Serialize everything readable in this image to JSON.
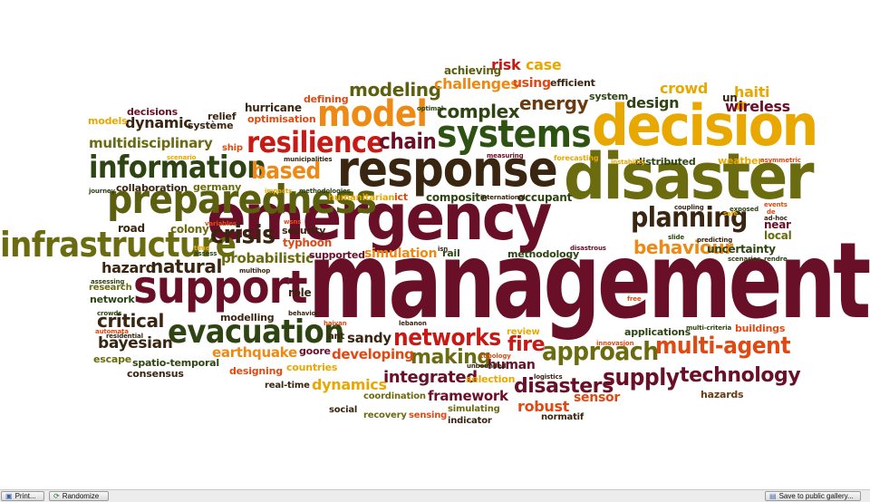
{
  "colors": {
    "dark_maroon": "#5a0f24",
    "maroon": "#7a1430",
    "olive": "#6b6b10",
    "olive_dark": "#5b5f0e",
    "dark_green": "#2e4412",
    "orange": "#ee8a14",
    "orange_red": "#e04a12",
    "red": "#c81a14",
    "gold": "#e2a800",
    "brown": "#6a3a10"
  },
  "words": [
    {
      "text": "management",
      "color": "#6a0f28"
    },
    {
      "text": "emergency",
      "color": "#6a0f28"
    },
    {
      "text": "disaster",
      "color": "#6b6b10"
    },
    {
      "text": "decision",
      "color": "#e8a800"
    },
    {
      "text": "response",
      "color": "#3a2510"
    },
    {
      "text": "systems",
      "color": "#2e5212"
    },
    {
      "text": "model",
      "color": "#ee8a14"
    },
    {
      "text": "resilience",
      "color": "#c81a14"
    },
    {
      "text": "preparedness",
      "color": "#5b5f0e"
    },
    {
      "text": "information",
      "color": "#2e4412"
    },
    {
      "text": "infrastructure",
      "color": "#6b6b10"
    },
    {
      "text": "support",
      "color": "#6a0f28"
    },
    {
      "text": "evacuation",
      "color": "#2e4412"
    },
    {
      "text": "planning",
      "color": "#3a2510"
    },
    {
      "text": "crisis",
      "color": "#3a2510"
    },
    {
      "text": "based",
      "color": "#ee8a14"
    },
    {
      "text": "chain",
      "color": "#6a0f28"
    },
    {
      "text": "modeling",
      "color": "#5b5f0e"
    },
    {
      "text": "complex",
      "color": "#2e4412"
    },
    {
      "text": "energy",
      "color": "#6a3a10"
    },
    {
      "text": "networks",
      "color": "#c81a14"
    },
    {
      "text": "approach",
      "color": "#6b6b10"
    },
    {
      "text": "multi-agent",
      "color": "#e04a12"
    },
    {
      "text": "supply",
      "color": "#6a0f28"
    },
    {
      "text": "technology",
      "color": "#6a0f28"
    },
    {
      "text": "disasters",
      "color": "#6a0f28"
    },
    {
      "text": "fire",
      "color": "#c81a14"
    },
    {
      "text": "making",
      "color": "#6b6b10"
    },
    {
      "text": "behaviour",
      "color": "#ee8a14"
    },
    {
      "text": "natural",
      "color": "#3a2510"
    },
    {
      "text": "critical",
      "color": "#3a2510"
    },
    {
      "text": "bayesian",
      "color": "#3a2510"
    },
    {
      "text": "hazard",
      "color": "#3a2510"
    },
    {
      "text": "probabilistic",
      "color": "#6b6b10"
    },
    {
      "text": "dynamic",
      "color": "#3a2510"
    },
    {
      "text": "multidisciplinary",
      "color": "#6b6b10"
    },
    {
      "text": "wireless",
      "color": "#6a0f28"
    },
    {
      "text": "haiti",
      "color": "#e8a800"
    },
    {
      "text": "crowd",
      "color": "#e8a800"
    },
    {
      "text": "design",
      "color": "#2e4412"
    },
    {
      "text": "risk",
      "color": "#c81a14"
    },
    {
      "text": "case",
      "color": "#e8a800"
    },
    {
      "text": "challenges",
      "color": "#ee8a14"
    },
    {
      "text": "using",
      "color": "#e04a12"
    },
    {
      "text": "achieving",
      "color": "#5b5f0e"
    },
    {
      "text": "efficient",
      "color": "#3a2510"
    },
    {
      "text": "integrated",
      "color": "#6a0f28"
    },
    {
      "text": "developing",
      "color": "#e04a12"
    },
    {
      "text": "earthquake",
      "color": "#ee8a14"
    },
    {
      "text": "sandy",
      "color": "#3a2510"
    },
    {
      "text": "human",
      "color": "#6a0f28"
    },
    {
      "text": "framework",
      "color": "#6a0f28"
    },
    {
      "text": "robust",
      "color": "#e04a12"
    },
    {
      "text": "sensor",
      "color": "#e04a12"
    },
    {
      "text": "dynamics",
      "color": "#e8a800"
    },
    {
      "text": "simulation",
      "color": "#ee8a14"
    },
    {
      "text": "methodology",
      "color": "#2e4412"
    },
    {
      "text": "uncertainty",
      "color": "#2e4412"
    },
    {
      "text": "local",
      "color": "#6b6b10"
    },
    {
      "text": "near",
      "color": "#6a0f28"
    },
    {
      "text": "buildings",
      "color": "#e04a12"
    },
    {
      "text": "applications",
      "color": "#2e4412"
    },
    {
      "text": "hazards",
      "color": "#6a3a10"
    },
    {
      "text": "composite",
      "color": "#2e4412"
    },
    {
      "text": "occupant",
      "color": "#2e4412"
    },
    {
      "text": "distributed",
      "color": "#2e4412"
    },
    {
      "text": "weather",
      "color": "#e8a800"
    },
    {
      "text": "system",
      "color": "#2e4412"
    },
    {
      "text": "un",
      "color": "#3a2510"
    },
    {
      "text": "hurricane",
      "color": "#3a2510"
    },
    {
      "text": "optimisation",
      "color": "#e04a12"
    },
    {
      "text": "defining",
      "color": "#e04a12"
    },
    {
      "text": "relief",
      "color": "#3a2510"
    },
    {
      "text": "système",
      "color": "#3a2510"
    },
    {
      "text": "decisions",
      "color": "#6a0f28"
    },
    {
      "text": "models",
      "color": "#e8a800"
    },
    {
      "text": "ship",
      "color": "#e04a12"
    },
    {
      "text": "germany",
      "color": "#6b6b10"
    },
    {
      "text": "collaboration",
      "color": "#3a2510"
    },
    {
      "text": "road",
      "color": "#3a2510"
    },
    {
      "text": "colony",
      "color": "#6b6b10"
    },
    {
      "text": "security",
      "color": "#3a2510"
    },
    {
      "text": "typhoon",
      "color": "#e04a12"
    },
    {
      "text": "supported",
      "color": "#6a0f28"
    },
    {
      "text": "rail",
      "color": "#2e4412"
    },
    {
      "text": "humanitarian",
      "color": "#e8a800"
    },
    {
      "text": "ict",
      "color": "#e04a12"
    },
    {
      "text": "research",
      "color": "#6b6b10"
    },
    {
      "text": "network",
      "color": "#2e4412"
    },
    {
      "text": "role",
      "color": "#3a2510"
    },
    {
      "text": "modelling",
      "color": "#3a2510"
    },
    {
      "text": "ant",
      "color": "#3a2510"
    },
    {
      "text": "escape",
      "color": "#6b6b10"
    },
    {
      "text": "spatio-temporal",
      "color": "#2e4412"
    },
    {
      "text": "consensus",
      "color": "#3a2510"
    },
    {
      "text": "designing",
      "color": "#e04a12"
    },
    {
      "text": "goore",
      "color": "#6a0f28"
    },
    {
      "text": "countries",
      "color": "#e8a800"
    },
    {
      "text": "real-time",
      "color": "#3a2510"
    },
    {
      "text": "review",
      "color": "#e8a800"
    },
    {
      "text": "selection",
      "color": "#e8a800"
    },
    {
      "text": "coordination",
      "color": "#6b6b10"
    },
    {
      "text": "social",
      "color": "#3a2510"
    },
    {
      "text": "recovery",
      "color": "#6b6b10"
    },
    {
      "text": "sensing",
      "color": "#e04a12"
    },
    {
      "text": "simulating",
      "color": "#6b6b10"
    },
    {
      "text": "indicator",
      "color": "#3a2510"
    },
    {
      "text": "normatif",
      "color": "#3a2510"
    },
    {
      "text": "forecasting",
      "color": "#e8a800"
    },
    {
      "text": "measuring",
      "color": "#6a0f28"
    },
    {
      "text": "scenario",
      "color": "#e8a800"
    },
    {
      "text": "journey",
      "color": "#2e4412"
    },
    {
      "text": "impacts",
      "color": "#e8a800"
    },
    {
      "text": "methodologies",
      "color": "#2e4412"
    },
    {
      "text": "international",
      "color": "#3a2510"
    },
    {
      "text": "variables",
      "color": "#e04a12"
    },
    {
      "text": "time",
      "color": "#e8a800"
    },
    {
      "text": "assess",
      "color": "#2e4412"
    },
    {
      "text": "wsns",
      "color": "#e04a12"
    },
    {
      "text": "municipalities",
      "color": "#3a2510"
    },
    {
      "text": "optimal",
      "color": "#2e4412"
    },
    {
      "text": "instability",
      "color": "#e8a800"
    },
    {
      "text": "safe",
      "color": "#e8a800"
    },
    {
      "text": "asymmetric",
      "color": "#e04a12"
    },
    {
      "text": "events",
      "color": "#e04a12"
    },
    {
      "text": "de",
      "color": "#e04a12"
    },
    {
      "text": "ad-hoc",
      "color": "#3a2510"
    },
    {
      "text": "exposed",
      "color": "#2e4412"
    },
    {
      "text": "coupling",
      "color": "#3a2510"
    },
    {
      "text": "predicting",
      "color": "#3a2510"
    },
    {
      "text": "slide",
      "color": "#2e4412"
    },
    {
      "text": "scenarios",
      "color": "#2e4412"
    },
    {
      "text": "rendre",
      "color": "#2e4412"
    },
    {
      "text": "disastrous",
      "color": "#6a0f28"
    },
    {
      "text": "isn",
      "color": "#3a2510"
    },
    {
      "text": "lebanon",
      "color": "#3a2510"
    },
    {
      "text": "haiyan",
      "color": "#e04a12"
    },
    {
      "text": "residential",
      "color": "#3a2510"
    },
    {
      "text": "automata",
      "color": "#e04a12"
    },
    {
      "text": "crowds",
      "color": "#2e4412"
    },
    {
      "text": "multihop",
      "color": "#3a2510"
    },
    {
      "text": "behavior",
      "color": "#3a2510"
    },
    {
      "text": "free",
      "color": "#e04a12"
    },
    {
      "text": "innovasjon",
      "color": "#e04a12"
    },
    {
      "text": "multi-criteria",
      "color": "#2e4412"
    },
    {
      "text": "logistics",
      "color": "#3a2510"
    },
    {
      "text": "unbounded",
      "color": "#3a2510"
    },
    {
      "text": "topology",
      "color": "#e04a12"
    },
    {
      "text": "assessing",
      "color": "#2e4412"
    },
    {
      "text": "hotel",
      "color": "#3a2510"
    },
    {
      "text": "autonomous",
      "color": "#e04a12"
    },
    {
      "text": "ship",
      "color": "#e04a12"
    }
  ],
  "toolbar": {
    "print_label": "Print...",
    "randomize_label": "Randomize",
    "save_label": "Save to public gallery..."
  }
}
